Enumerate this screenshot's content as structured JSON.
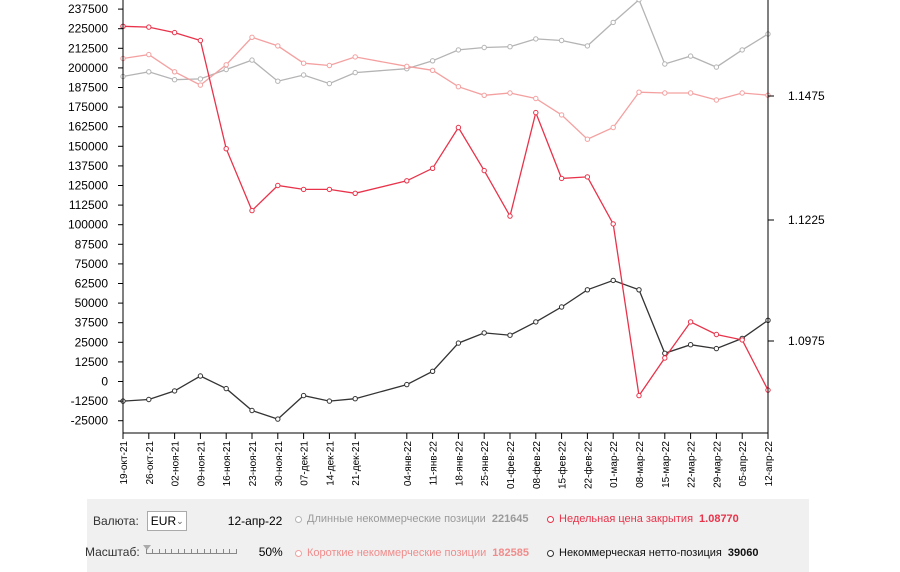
{
  "chart_data": {
    "type": "line",
    "x": [
      "19-окт-21",
      "26-окт-21",
      "02-ноя-21",
      "09-ноя-21",
      "16-ноя-21",
      "23-ноя-21",
      "30-ноя-21",
      "07-дек-21",
      "14-дек-21",
      "21-дек-21",
      "04-янв-22",
      "11-янв-22",
      "18-янв-22",
      "25-янв-22",
      "01-фев-22",
      "08-фев-22",
      "15-фев-22",
      "22-фев-22",
      "01-мар-22",
      "08-мар-22",
      "15-мар-22",
      "22-мар-22",
      "29-мар-22",
      "05-апр-22",
      "12-апр-22"
    ],
    "x_positions": [
      0,
      1,
      2,
      3,
      4,
      5,
      6,
      7,
      8,
      9,
      11,
      12,
      13,
      14,
      15,
      16,
      17,
      18,
      19,
      20,
      21,
      22,
      23,
      24,
      25
    ],
    "left_axis": {
      "min": -25000,
      "max": 237500,
      "ticks": [
        -25000,
        -12500,
        0,
        12500,
        25000,
        37500,
        50000,
        62500,
        75000,
        87500,
        100000,
        112500,
        125000,
        137500,
        150000,
        162500,
        175000,
        187500,
        200000,
        212500,
        225000,
        237500
      ]
    },
    "right_axis": {
      "ticks": [
        "1.1475",
        "1.1225",
        "1.0975"
      ]
    },
    "series": [
      {
        "name": "Длинные некоммерческие позиции",
        "axis": "left",
        "color": "#b4b4b4",
        "values": [
          194500,
          197500,
          192500,
          193000,
          199000,
          205000,
          191500,
          195500,
          190000,
          197000,
          199500,
          204500,
          211500,
          213000,
          213500,
          218500,
          217500,
          214000,
          229000,
          243500,
          202500,
          207500,
          200500,
          211500,
          221645
        ]
      },
      {
        "name": "Короткие некоммерческие позиции",
        "axis": "left",
        "color": "#f4a0a0",
        "values": [
          206000,
          208500,
          197500,
          189000,
          202000,
          219500,
          214000,
          203000,
          201500,
          207000,
          201000,
          198500,
          188000,
          182500,
          184000,
          180500,
          170000,
          154500,
          162000,
          184500,
          184000,
          184000,
          179500,
          184000,
          182585
        ]
      },
      {
        "name": "Некоммерческая нетто-позиция",
        "axis": "left",
        "color": "#333333",
        "values": [
          -12500,
          -11500,
          -6000,
          3500,
          -4500,
          -18500,
          -24000,
          -9000,
          -12500,
          -11000,
          -2000,
          6500,
          24500,
          31000,
          29500,
          38000,
          47500,
          58500,
          64500,
          58500,
          18000,
          23500,
          21000,
          27500,
          39060
        ]
      },
      {
        "name": "Недельная цена закрытия",
        "axis": "left",
        "color": "#e8334a",
        "values": [
          226500,
          226000,
          222500,
          217500,
          148500,
          109000,
          125000,
          122500,
          122500,
          120000,
          128000,
          136000,
          162000,
          134500,
          105500,
          171500,
          129500,
          130500,
          100500,
          -9000,
          15000,
          38000,
          30000,
          26500,
          -5500
        ]
      }
    ]
  },
  "controls": {
    "currency_label": "Валюта:",
    "currency_value": "EUR",
    "date": "12-апр-22",
    "scale_label": "Масштаб:",
    "scale_percent": 0.5,
    "scale_value": "50%"
  },
  "legend": {
    "long": {
      "label": "Длинные некоммерческие позиции",
      "value": "221645",
      "color": "#b4b4b4",
      "text_color": "#9a9a9a"
    },
    "weekly": {
      "label": "Недельная цена закрытия",
      "value": "1.08770",
      "color": "#e8334a",
      "text_color": "#e8334a"
    },
    "short": {
      "label": "Короткие некоммерческие позиции",
      "value": "182585",
      "color": "#f4a0a0",
      "text_color": "#f08c8c"
    },
    "net": {
      "label": "Некоммерческая нетто-позиция",
      "value": "39060",
      "color": "#333333",
      "text_color": "#111111"
    }
  }
}
